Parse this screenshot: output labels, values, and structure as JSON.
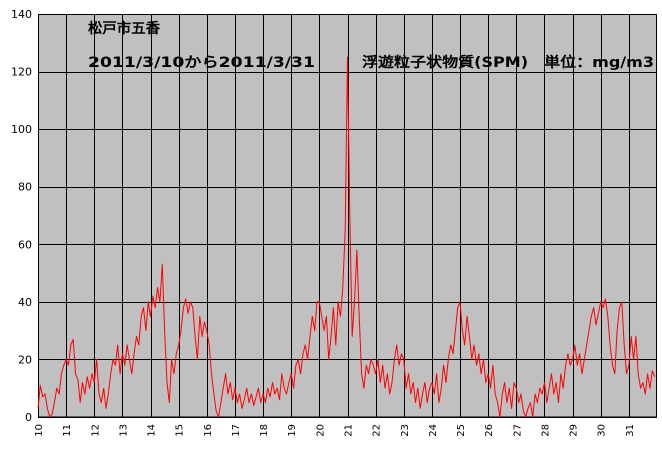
{
  "chart_data": {
    "type": "line",
    "title": "松戸市五香",
    "subtitle": "2011/3/10から2011/3/31",
    "annotation": "浮遊粒子状物質(SPM)　単位：mg/m3",
    "ylim": [
      0,
      140
    ],
    "y_ticks": [
      0,
      20,
      40,
      60,
      80,
      100,
      120,
      140
    ],
    "x_ticks": [
      "10",
      "11",
      "12",
      "13",
      "14",
      "15",
      "16",
      "17",
      "18",
      "19",
      "20",
      "21",
      "22",
      "23",
      "24",
      "25",
      "26",
      "27",
      "28",
      "29",
      "30",
      "31"
    ],
    "grid": true,
    "plot_background": "#c0c0c0",
    "series": [
      {
        "color": "#ff0000",
        "values_by_day": [
          [
            3,
            11,
            7,
            8,
            3,
            0,
            1,
            5,
            10,
            8,
            15,
            18
          ],
          [
            20,
            18,
            25,
            27,
            15,
            13,
            5,
            12,
            8,
            14,
            10,
            15
          ],
          [
            12,
            20,
            8,
            5,
            10,
            3,
            8,
            15,
            20,
            18,
            25,
            15
          ],
          [
            22,
            18,
            25,
            20,
            15,
            22,
            28,
            25,
            35,
            38,
            30,
            40
          ],
          [
            35,
            42,
            38,
            45,
            40,
            53,
            30,
            12,
            5,
            20,
            15,
            22
          ],
          [
            25,
            30,
            38,
            41,
            36,
            40,
            38,
            28,
            20,
            35,
            28,
            33
          ],
          [
            30,
            25,
            15,
            8,
            2,
            0,
            5,
            10,
            15,
            8,
            12,
            6
          ],
          [
            10,
            5,
            8,
            3,
            6,
            10,
            5,
            8,
            4,
            7,
            10,
            5
          ],
          [
            8,
            5,
            10,
            7,
            12,
            8,
            10,
            6,
            15,
            10,
            8,
            12
          ],
          [
            15,
            10,
            18,
            20,
            15,
            22,
            25,
            20,
            28,
            35,
            30,
            40
          ],
          [
            40,
            35,
            30,
            35,
            20,
            28,
            38,
            25,
            40,
            35,
            45,
            65
          ],
          [
            125,
            70,
            28,
            40,
            58,
            35,
            15,
            10,
            18,
            15,
            20,
            18
          ],
          [
            15,
            20,
            12,
            18,
            10,
            15,
            8,
            12,
            20,
            25,
            18,
            22
          ],
          [
            20,
            10,
            15,
            8,
            12,
            5,
            10,
            3,
            8,
            12,
            5,
            10
          ],
          [
            12,
            8,
            15,
            5,
            10,
            18,
            12,
            20,
            25,
            22,
            30,
            38
          ],
          [
            40,
            30,
            25,
            35,
            28,
            20,
            25,
            18,
            22,
            15,
            20,
            12
          ],
          [
            15,
            10,
            18,
            8,
            5,
            0,
            8,
            12,
            5,
            10,
            3,
            12
          ],
          [
            10,
            5,
            8,
            2,
            0,
            3,
            5,
            0,
            8,
            5,
            10,
            8
          ],
          [
            12,
            5,
            10,
            15,
            8,
            12,
            5,
            15,
            10,
            18,
            22,
            18
          ],
          [
            20,
            25,
            18,
            22,
            15,
            20,
            25,
            30,
            35,
            38,
            32,
            36
          ],
          [
            40,
            38,
            41,
            35,
            25,
            18,
            15,
            30,
            38,
            40,
            25,
            15
          ],
          [
            18,
            28,
            20,
            28,
            15,
            10,
            12,
            8,
            15,
            10,
            16,
            14
          ]
        ]
      }
    ]
  }
}
